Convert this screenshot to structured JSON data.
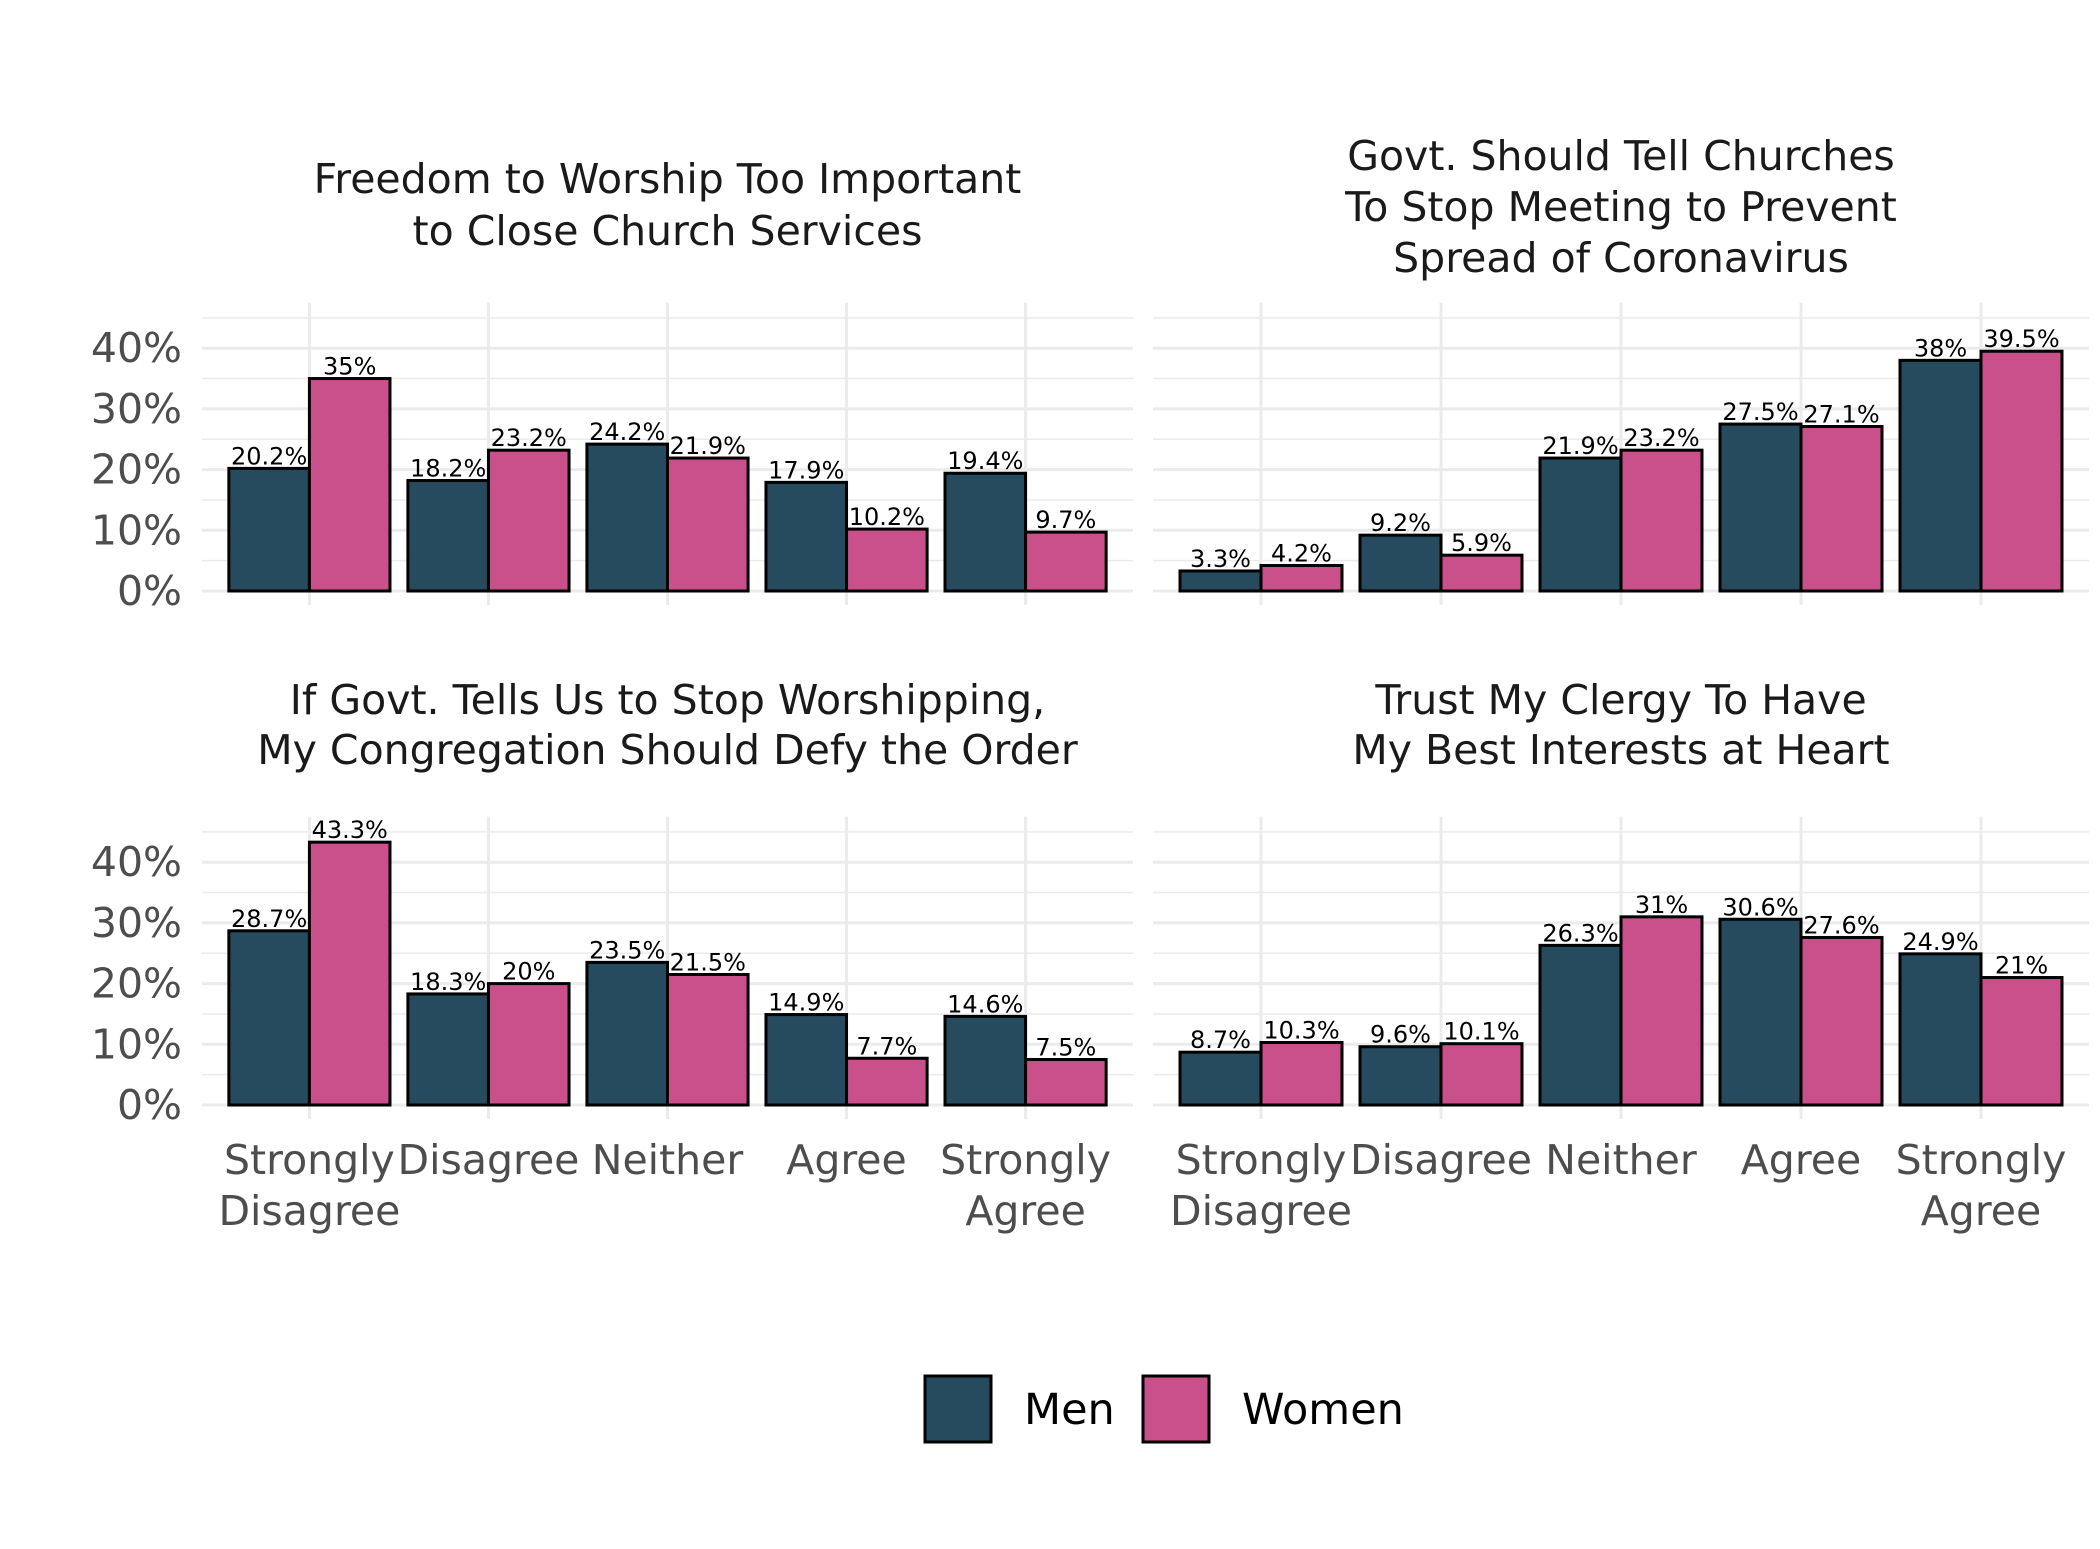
{
  "chart_data": {
    "type": "bar",
    "legend": {
      "placement": "bottom",
      "entries": [
        {
          "name": "Men",
          "color": "#264a5e"
        },
        {
          "name": "Women",
          "color": "#c9508a"
        }
      ]
    },
    "categories": [
      [
        "Strongly",
        "Disagree"
      ],
      [
        "Disagree"
      ],
      [
        "Neither"
      ],
      [
        "Agree"
      ],
      [
        "Strongly",
        "Agree"
      ]
    ],
    "y_ticks": [
      "0%",
      "10%",
      "20%",
      "30%",
      "40%"
    ],
    "ylim": [
      0,
      45
    ],
    "grid": true,
    "panels": [
      {
        "title": [
          "Freedom to Worship Too Important",
          "to Close Church Services"
        ],
        "series": [
          {
            "name": "Men",
            "values": [
              20.2,
              18.2,
              24.2,
              17.9,
              19.4
            ],
            "labels": [
              "20.2%",
              "18.2%",
              "24.2%",
              "17.9%",
              "19.4%"
            ]
          },
          {
            "name": "Women",
            "values": [
              35,
              23.2,
              21.9,
              10.2,
              9.7
            ],
            "labels": [
              "35%",
              "23.2%",
              "21.9%",
              "10.2%",
              "9.7%"
            ]
          }
        ]
      },
      {
        "title": [
          "Govt. Should Tell Churches",
          "To Stop Meeting to Prevent",
          "Spread of Coronavirus"
        ],
        "series": [
          {
            "name": "Men",
            "values": [
              3.3,
              9.2,
              21.9,
              27.5,
              38
            ],
            "labels": [
              "3.3%",
              "9.2%",
              "21.9%",
              "27.5%",
              "38%"
            ]
          },
          {
            "name": "Women",
            "values": [
              4.2,
              5.9,
              23.2,
              27.1,
              39.5
            ],
            "labels": [
              "4.2%",
              "5.9%",
              "23.2%",
              "27.1%",
              "39.5%"
            ]
          }
        ]
      },
      {
        "title": [
          "If Govt. Tells Us to Stop Worshipping,",
          "My Congregation Should Defy the Order"
        ],
        "series": [
          {
            "name": "Men",
            "values": [
              28.7,
              18.3,
              23.5,
              14.9,
              14.6
            ],
            "labels": [
              "28.7%",
              "18.3%",
              "23.5%",
              "14.9%",
              "14.6%"
            ]
          },
          {
            "name": "Women",
            "values": [
              43.3,
              20,
              21.5,
              7.7,
              7.5
            ],
            "labels": [
              "43.3%",
              "20%",
              "21.5%",
              "7.7%",
              "7.5%"
            ]
          }
        ]
      },
      {
        "title": [
          "Trust My Clergy To Have",
          "My Best Interests at Heart"
        ],
        "series": [
          {
            "name": "Men",
            "values": [
              8.7,
              9.6,
              26.3,
              30.6,
              24.9
            ],
            "labels": [
              "8.7%",
              "9.6%",
              "26.3%",
              "30.6%",
              "24.9%"
            ]
          },
          {
            "name": "Women",
            "values": [
              10.3,
              10.1,
              31,
              27.6,
              21
            ],
            "labels": [
              "10.3%",
              "10.1%",
              "31%",
              "27.6%",
              "21%"
            ]
          }
        ]
      }
    ]
  }
}
